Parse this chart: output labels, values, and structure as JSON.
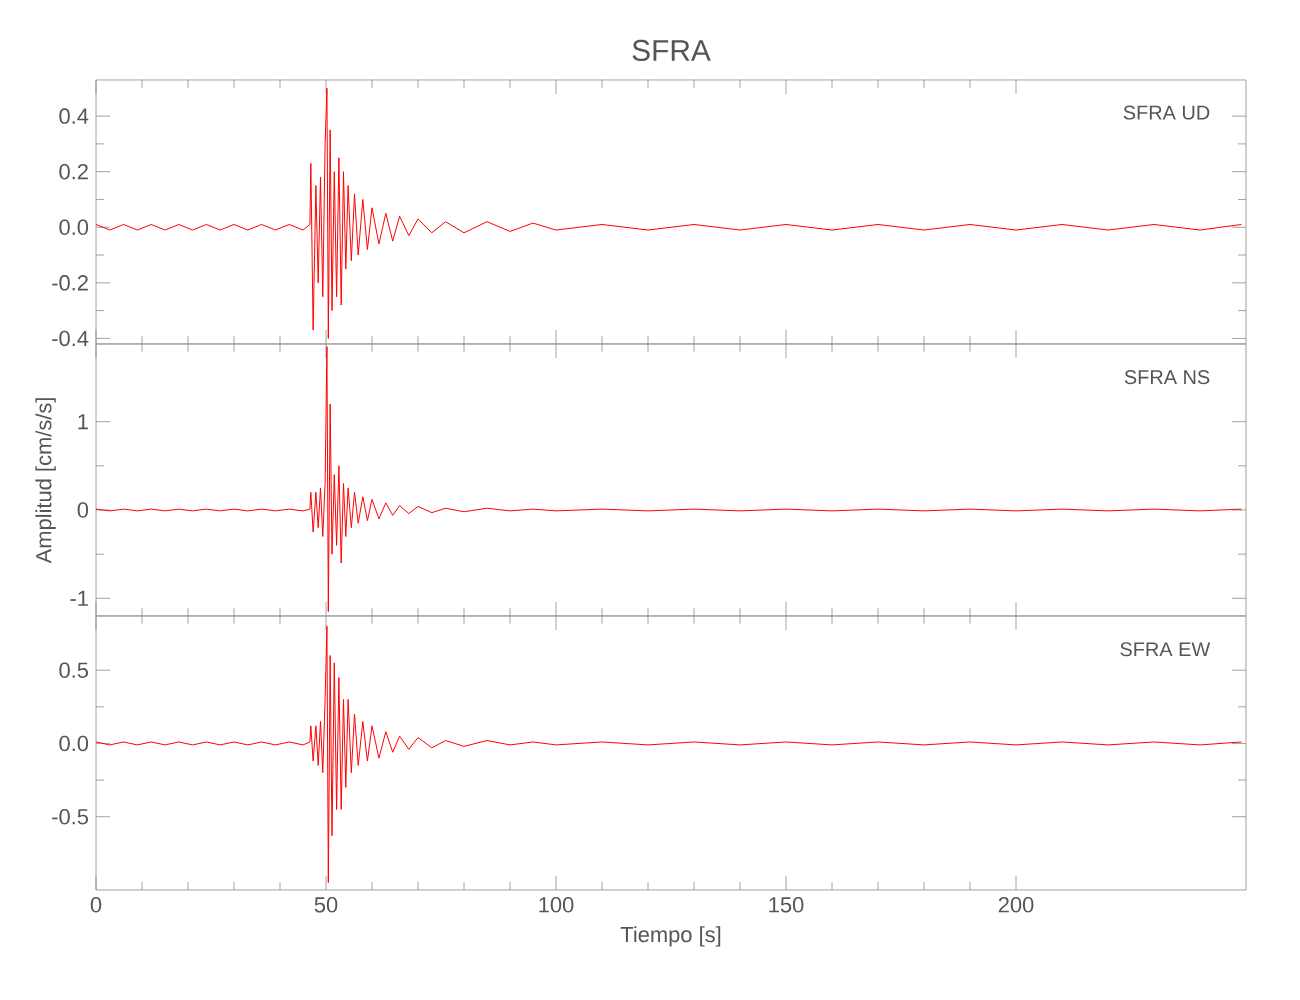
{
  "chart_data": [
    {
      "type": "line",
      "title": "SFRA",
      "annotations": [
        "SFRA UD"
      ],
      "xlim": [
        0,
        250
      ],
      "xticks": [
        0,
        50,
        100,
        150,
        200
      ],
      "ylim": [
        -0.42,
        0.53
      ],
      "yticks": [
        -0.4,
        -0.2,
        {
          "value": 0,
          "label": "0.0"
        },
        0.2,
        0.4
      ],
      "tick_labels": "y",
      "grid": false,
      "marker": "none",
      "line_style": "solid",
      "series": [
        {
          "color": "#ff0000",
          "x": [
            0,
            3,
            6,
            9,
            12,
            15,
            18,
            21,
            24,
            27,
            30,
            33,
            36,
            39,
            42,
            45,
            46.5,
            46.7,
            47.2,
            47.8,
            48.3,
            48.8,
            49.3,
            49.8,
            50.2,
            50.5,
            50.9,
            51.3,
            51.8,
            52.3,
            52.8,
            53.3,
            53.8,
            54.3,
            54.8,
            55.5,
            56.2,
            57,
            58,
            59,
            60,
            61.5,
            63,
            64.5,
            66,
            68,
            70,
            73,
            76,
            80,
            85,
            90,
            95,
            100,
            110,
            120,
            130,
            140,
            150,
            160,
            170,
            180,
            190,
            200,
            210,
            220,
            230,
            240,
            249
          ],
          "values": [
            0.01,
            -0.01,
            0.01,
            -0.01,
            0.01,
            -0.01,
            0.01,
            -0.01,
            0.01,
            -0.01,
            0.01,
            -0.01,
            0.01,
            -0.01,
            0.01,
            -0.01,
            0.01,
            0.23,
            -0.37,
            0.15,
            -0.2,
            0.18,
            -0.25,
            0.3,
            0.5,
            -0.4,
            0.35,
            -0.3,
            0.2,
            -0.25,
            0.25,
            -0.28,
            0.2,
            -0.15,
            0.15,
            -0.12,
            0.12,
            -0.1,
            0.1,
            -0.08,
            0.07,
            -0.06,
            0.05,
            -0.05,
            0.04,
            -0.03,
            0.03,
            -0.02,
            0.02,
            -0.02,
            0.02,
            -0.015,
            0.015,
            -0.01,
            0.01,
            -0.01,
            0.01,
            -0.01,
            0.01,
            -0.01,
            0.01,
            -0.01,
            0.01,
            -0.01,
            0.01,
            -0.01,
            0.01,
            -0.01,
            0.01
          ]
        }
      ]
    },
    {
      "type": "line",
      "ylabel": "Amplitud [cm/s/s]",
      "annotations": [
        "SFRA NS"
      ],
      "xlim": [
        0,
        250
      ],
      "xticks": [
        0,
        50,
        100,
        150,
        200
      ],
      "ylim": [
        -1.2,
        1.88
      ],
      "yticks": [
        -1,
        0,
        1
      ],
      "tick_labels": "y",
      "grid": false,
      "marker": "none",
      "line_style": "solid",
      "series": [
        {
          "color": "#ff0000",
          "x": [
            0,
            3,
            6,
            9,
            12,
            15,
            18,
            21,
            24,
            27,
            30,
            33,
            36,
            39,
            42,
            45,
            46.5,
            46.7,
            47.2,
            47.8,
            48.3,
            48.8,
            49.3,
            49.8,
            50.2,
            50.5,
            50.9,
            51.3,
            51.8,
            52.3,
            52.8,
            53.3,
            53.8,
            54.3,
            54.8,
            55.5,
            56.2,
            57,
            58,
            59,
            60,
            61.5,
            63,
            64.5,
            66,
            68,
            70,
            73,
            76,
            80,
            85,
            90,
            95,
            100,
            110,
            120,
            130,
            140,
            150,
            160,
            170,
            180,
            190,
            200,
            210,
            220,
            230,
            240,
            249
          ],
          "values": [
            0.01,
            -0.01,
            0.01,
            -0.01,
            0.01,
            -0.01,
            0.01,
            -0.01,
            0.01,
            -0.01,
            0.01,
            -0.01,
            0.01,
            -0.01,
            0.01,
            -0.01,
            0.01,
            0.2,
            -0.25,
            0.2,
            -0.2,
            0.25,
            -0.3,
            0.3,
            1.85,
            -1.15,
            1.2,
            -0.5,
            0.4,
            -0.4,
            0.5,
            -0.6,
            0.3,
            -0.3,
            0.25,
            -0.2,
            0.2,
            -0.15,
            0.15,
            -0.12,
            0.12,
            -0.1,
            0.08,
            -0.06,
            0.05,
            -0.04,
            0.04,
            -0.03,
            0.02,
            -0.02,
            0.02,
            -0.01,
            0.01,
            -0.01,
            0.01,
            -0.01,
            0.01,
            -0.01,
            0.01,
            -0.01,
            0.01,
            -0.01,
            0.01,
            -0.01,
            0.01,
            -0.01,
            0.01,
            -0.01,
            0.01
          ]
        }
      ]
    },
    {
      "type": "line",
      "xlabel": "Tiempo [s]",
      "annotations": [
        "SFRA EW"
      ],
      "xlim": [
        0,
        250
      ],
      "xticks": [
        0,
        50,
        100,
        150,
        200
      ],
      "ylim": [
        -1.0,
        0.87
      ],
      "yticks": [
        -0.5,
        {
          "value": 0,
          "label": "0.0"
        },
        0.5
      ],
      "grid": false,
      "marker": "none",
      "line_style": "solid",
      "series": [
        {
          "color": "#ff0000",
          "x": [
            0,
            3,
            6,
            9,
            12,
            15,
            18,
            21,
            24,
            27,
            30,
            33,
            36,
            39,
            42,
            45,
            46.5,
            46.7,
            47.2,
            47.8,
            48.3,
            48.8,
            49.3,
            49.8,
            50.2,
            50.5,
            50.9,
            51.3,
            51.8,
            52.3,
            52.8,
            53.3,
            53.8,
            54.3,
            54.8,
            55.5,
            56.2,
            57,
            58,
            59,
            60,
            61.5,
            63,
            64.5,
            66,
            68,
            70,
            73,
            76,
            80,
            85,
            90,
            95,
            100,
            110,
            120,
            130,
            140,
            150,
            160,
            170,
            180,
            190,
            200,
            210,
            220,
            230,
            240,
            249
          ],
          "values": [
            0.01,
            -0.01,
            0.01,
            -0.01,
            0.01,
            -0.01,
            0.01,
            -0.01,
            0.01,
            -0.01,
            0.01,
            -0.01,
            0.01,
            -0.01,
            0.01,
            -0.01,
            0.01,
            0.12,
            -0.12,
            0.12,
            -0.15,
            0.15,
            -0.2,
            0.3,
            0.8,
            -0.95,
            0.6,
            -0.63,
            0.55,
            -0.45,
            0.45,
            -0.45,
            0.3,
            -0.3,
            0.3,
            -0.2,
            0.2,
            -0.15,
            0.15,
            -0.12,
            0.12,
            -0.1,
            0.08,
            -0.06,
            0.05,
            -0.04,
            0.04,
            -0.03,
            0.02,
            -0.02,
            0.02,
            -0.01,
            0.01,
            -0.01,
            0.01,
            -0.01,
            0.01,
            -0.01,
            0.01,
            -0.01,
            0.01,
            -0.01,
            0.01,
            -0.01,
            0.01,
            -0.01,
            0.01,
            -0.01,
            0.01
          ]
        }
      ]
    }
  ]
}
